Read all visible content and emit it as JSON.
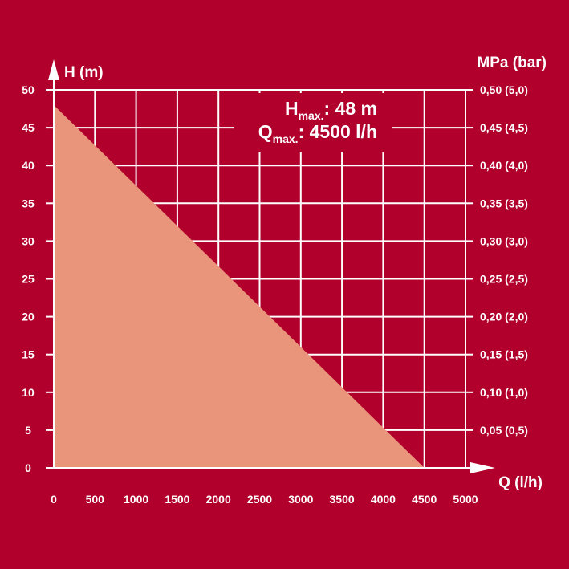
{
  "chart_data": {
    "type": "area",
    "series": [
      {
        "x": [
          0,
          4500
        ],
        "y": [
          48,
          0
        ]
      }
    ],
    "xlabel": "Q (l/h)",
    "ylabel": "H (m)",
    "y2label": "MPa (bar)",
    "xlim": [
      0,
      5000
    ],
    "ylim": [
      0,
      50
    ],
    "x_ticks": [
      "0",
      "500",
      "1000",
      "1500",
      "2000",
      "2500",
      "3000",
      "3500",
      "4000",
      "4500",
      "5000"
    ],
    "y_ticks": [
      "0",
      "5",
      "10",
      "15",
      "20",
      "25",
      "30",
      "35",
      "40",
      "45",
      "50"
    ],
    "y2_ticks": [
      "",
      "0,05 (0,5)",
      "0,10 (1,0)",
      "0,15 (1,5)",
      "0,20 (2,0)",
      "0,25 (2,5)",
      "0,30 (3,0)",
      "0,35 (3,5)",
      "0,40 (4,0)",
      "0,45 (4,5)",
      "0,50 (5,0)"
    ],
    "grid": true,
    "annotations": {
      "hmax": {
        "main": "H",
        "sub": "max.",
        "value": ": 48 m"
      },
      "qmax": {
        "main": "Q",
        "sub": "max.",
        "value": ": 4500 l/h"
      }
    },
    "colors": {
      "background": "#b1002c",
      "fill": "#e8957b",
      "grid": "#ffffff",
      "text": "#ffffff"
    }
  }
}
